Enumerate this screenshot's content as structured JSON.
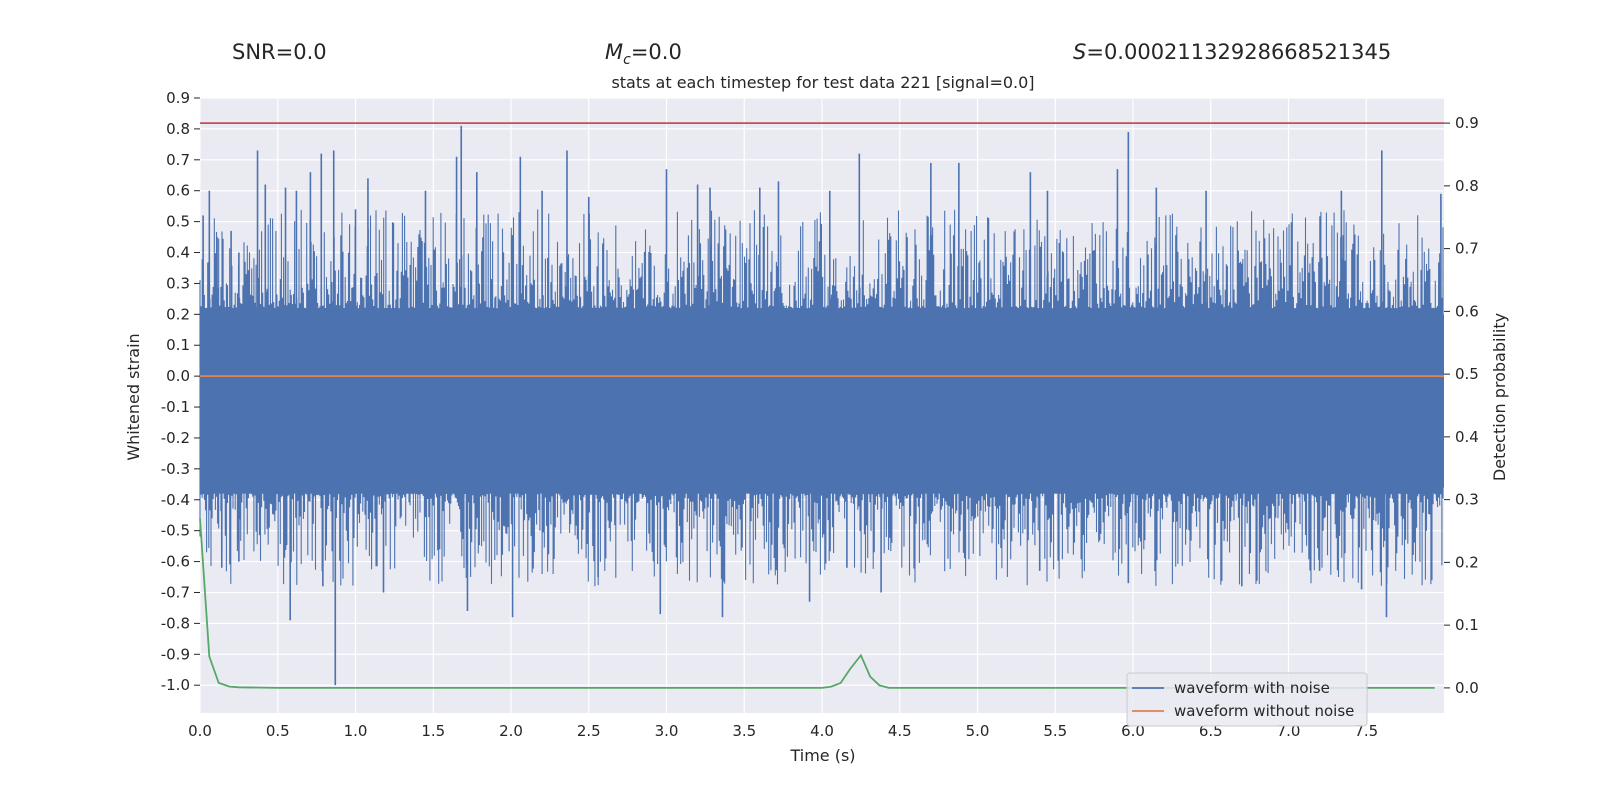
{
  "header": {
    "snr_text": "SNR=0.0",
    "mc_symbol": "M",
    "mc_sub": "c",
    "mc_value": "=0.0",
    "s_symbol": "S",
    "s_value": "=0.00021132928668521345"
  },
  "chart_data": {
    "type": "line",
    "title": "stats at each timestep for test data 221 [signal=0.0]",
    "xlabel": "Time (s)",
    "ylabel": "Whitened strain",
    "y2label": "Detection probability",
    "xlim": [
      0.0,
      8.0
    ],
    "ylim": [
      -1.09,
      0.9
    ],
    "y2lim": [
      -0.04,
      0.94
    ],
    "xticks": [
      "0.0",
      "0.5",
      "1.0",
      "1.5",
      "2.0",
      "2.5",
      "3.0",
      "3.5",
      "4.0",
      "4.5",
      "5.0",
      "5.5",
      "6.0",
      "6.5",
      "7.0",
      "7.5"
    ],
    "yticks": [
      "0.9",
      "0.8",
      "0.7",
      "0.6",
      "0.5",
      "0.4",
      "0.3",
      "0.2",
      "0.1",
      "0.0",
      "-0.1",
      "-0.2",
      "-0.3",
      "-0.4",
      "-0.5",
      "-0.6",
      "-0.7",
      "-0.8",
      "-0.9",
      "-1.0"
    ],
    "y2ticks": [
      "0.0",
      "0.1",
      "0.2",
      "0.3",
      "0.4",
      "0.5",
      "0.6",
      "0.7",
      "0.8",
      "0.9"
    ],
    "grid": true,
    "legend": {
      "position": "lower-right",
      "entries": [
        "waveform with noise",
        "waveform without noise"
      ]
    },
    "series": [
      {
        "name": "waveform with noise",
        "color": "#4c72b0",
        "axis": "left",
        "description": "dense whitened noise, core band roughly -0.35 to 0.2 with spikes",
        "core_range": [
          -0.38,
          0.22
        ],
        "spikes": [
          {
            "t": 0.02,
            "v": 0.52
          },
          {
            "t": 0.06,
            "v": 0.6
          },
          {
            "t": 0.11,
            "v": 0.45
          },
          {
            "t": 0.2,
            "v": 0.47
          },
          {
            "t": 0.25,
            "v": 0.4
          },
          {
            "t": 0.37,
            "v": 0.73
          },
          {
            "t": 0.42,
            "v": 0.62
          },
          {
            "t": 0.55,
            "v": 0.61
          },
          {
            "t": 0.62,
            "v": 0.6
          },
          {
            "t": 0.71,
            "v": 0.66
          },
          {
            "t": 0.78,
            "v": 0.72
          },
          {
            "t": 0.86,
            "v": 0.73
          },
          {
            "t": 1.0,
            "v": 0.54
          },
          {
            "t": 1.08,
            "v": 0.64
          },
          {
            "t": 1.45,
            "v": 0.6
          },
          {
            "t": 1.65,
            "v": 0.71
          },
          {
            "t": 1.68,
            "v": 0.81
          },
          {
            "t": 1.78,
            "v": 0.66
          },
          {
            "t": 2.06,
            "v": 0.71
          },
          {
            "t": 2.2,
            "v": 0.6
          },
          {
            "t": 2.36,
            "v": 0.73
          },
          {
            "t": 2.5,
            "v": 0.58
          },
          {
            "t": 3.0,
            "v": 0.67
          },
          {
            "t": 3.2,
            "v": 0.62
          },
          {
            "t": 3.28,
            "v": 0.61
          },
          {
            "t": 3.6,
            "v": 0.61
          },
          {
            "t": 3.72,
            "v": 0.63
          },
          {
            "t": 4.05,
            "v": 0.6
          },
          {
            "t": 4.24,
            "v": 0.72
          },
          {
            "t": 4.7,
            "v": 0.69
          },
          {
            "t": 4.88,
            "v": 0.69
          },
          {
            "t": 5.34,
            "v": 0.66
          },
          {
            "t": 5.45,
            "v": 0.6
          },
          {
            "t": 5.9,
            "v": 0.67
          },
          {
            "t": 5.97,
            "v": 0.79
          },
          {
            "t": 6.15,
            "v": 0.61
          },
          {
            "t": 6.47,
            "v": 0.6
          },
          {
            "t": 7.34,
            "v": 0.6
          },
          {
            "t": 7.6,
            "v": 0.73
          },
          {
            "t": 7.98,
            "v": 0.59
          },
          {
            "t": 0.58,
            "v": -0.79
          },
          {
            "t": 0.79,
            "v": -0.68
          },
          {
            "t": 0.87,
            "v": -1.0
          },
          {
            "t": 1.18,
            "v": -0.7
          },
          {
            "t": 1.72,
            "v": -0.76
          },
          {
            "t": 2.01,
            "v": -0.78
          },
          {
            "t": 2.56,
            "v": -0.65
          },
          {
            "t": 2.96,
            "v": -0.77
          },
          {
            "t": 3.36,
            "v": -0.78
          },
          {
            "t": 3.92,
            "v": -0.73
          },
          {
            "t": 4.38,
            "v": -0.7
          },
          {
            "t": 4.16,
            "v": -0.62
          },
          {
            "t": 5.4,
            "v": -0.63
          },
          {
            "t": 5.97,
            "v": -0.67
          },
          {
            "t": 6.7,
            "v": -0.68
          },
          {
            "t": 7.2,
            "v": -0.63
          },
          {
            "t": 7.47,
            "v": -0.69
          },
          {
            "t": 7.63,
            "v": -0.78
          },
          {
            "t": 0.14,
            "v": -0.62
          },
          {
            "t": 0.25,
            "v": -0.6
          }
        ]
      },
      {
        "name": "waveform without noise",
        "color": "#dd8452",
        "axis": "left",
        "x": [
          0.0,
          8.0
        ],
        "y": [
          0.0,
          0.0
        ]
      },
      {
        "name": "detection probability",
        "color": "#55a868",
        "axis": "right",
        "x": [
          0.0,
          0.06,
          0.12,
          0.19,
          0.25,
          0.5,
          1.0,
          2.0,
          3.0,
          4.0,
          4.06,
          4.12,
          4.18,
          4.25,
          4.31,
          4.37,
          4.43,
          4.5,
          5.0,
          6.0,
          7.0,
          7.94
        ],
        "y": [
          0.27,
          0.05,
          0.008,
          0.002,
          0.001,
          0.0,
          0.0,
          0.0,
          0.0,
          0.0,
          0.002,
          0.008,
          0.03,
          0.052,
          0.018,
          0.004,
          0.0,
          0.0,
          0.0,
          0.0,
          0.0,
          0.0
        ]
      },
      {
        "name": "threshold",
        "color": "#c44e52",
        "axis": "right",
        "x": [
          0.0,
          8.0
        ],
        "y": [
          0.9,
          0.9
        ]
      }
    ]
  }
}
